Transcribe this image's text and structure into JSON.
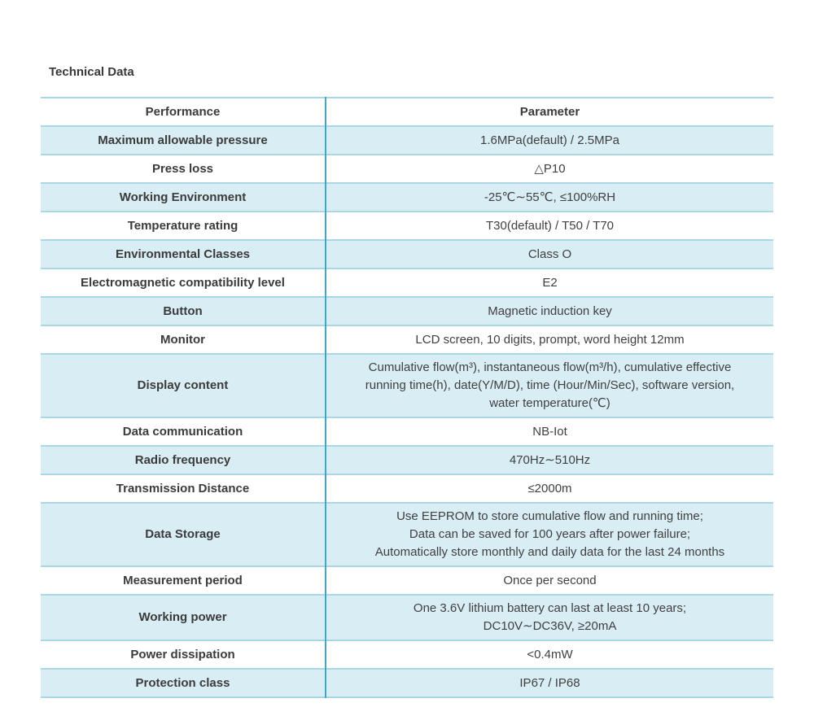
{
  "page": {
    "title": "Technical Data"
  },
  "colors": {
    "row_shade": "#d9edf4",
    "divider_line": "#3fa7cc",
    "grid_line": "#abd7e5",
    "text": "#3f3f3f"
  },
  "table": {
    "columns": [
      "Performance",
      "Parameter"
    ],
    "rows": [
      {
        "performance": "Maximum allowable pressure",
        "parameter": "1.6MPa(default) / 2.5MPa"
      },
      {
        "performance": "Press loss",
        "parameter": "△P10"
      },
      {
        "performance": "Working Environment",
        "parameter": "-25℃∼55℃, ≤100%RH"
      },
      {
        "performance": "Temperature rating",
        "parameter": "T30(default) / T50 / T70"
      },
      {
        "performance": "Environmental Classes",
        "parameter": "Class O"
      },
      {
        "performance": "Electromagnetic compatibility level",
        "parameter": "E2"
      },
      {
        "performance": "Button",
        "parameter": "Magnetic induction key"
      },
      {
        "performance": "Monitor",
        "parameter": "LCD screen, 10 digits, prompt, word height 12mm"
      },
      {
        "performance": "Display content",
        "parameter": "Cumulative flow(m³), instantaneous flow(m³/h), cumulative effective\nrunning time(h), date(Y/M/D), time (Hour/Min/Sec), software version,\nwater temperature(℃)"
      },
      {
        "performance": "Data communication",
        "parameter": "NB-Iot"
      },
      {
        "performance": "Radio frequency",
        "parameter": "470Hz∼510Hz"
      },
      {
        "performance": "Transmission Distance",
        "parameter": "≤2000m"
      },
      {
        "performance": "Data Storage",
        "parameter": "Use EEPROM to store cumulative flow and running time;\nData can be saved for 100 years after power failure;\nAutomatically store monthly and daily data for the last 24 months"
      },
      {
        "performance": "Measurement period",
        "parameter": "Once per second"
      },
      {
        "performance": "Working power",
        "parameter": "One 3.6V lithium battery can last at least 10 years;\nDC10V∼DC36V, ≥20mA"
      },
      {
        "performance": "Power dissipation",
        "parameter": "<0.4mW"
      },
      {
        "performance": "Protection class",
        "parameter": "IP67 / IP68"
      }
    ]
  }
}
